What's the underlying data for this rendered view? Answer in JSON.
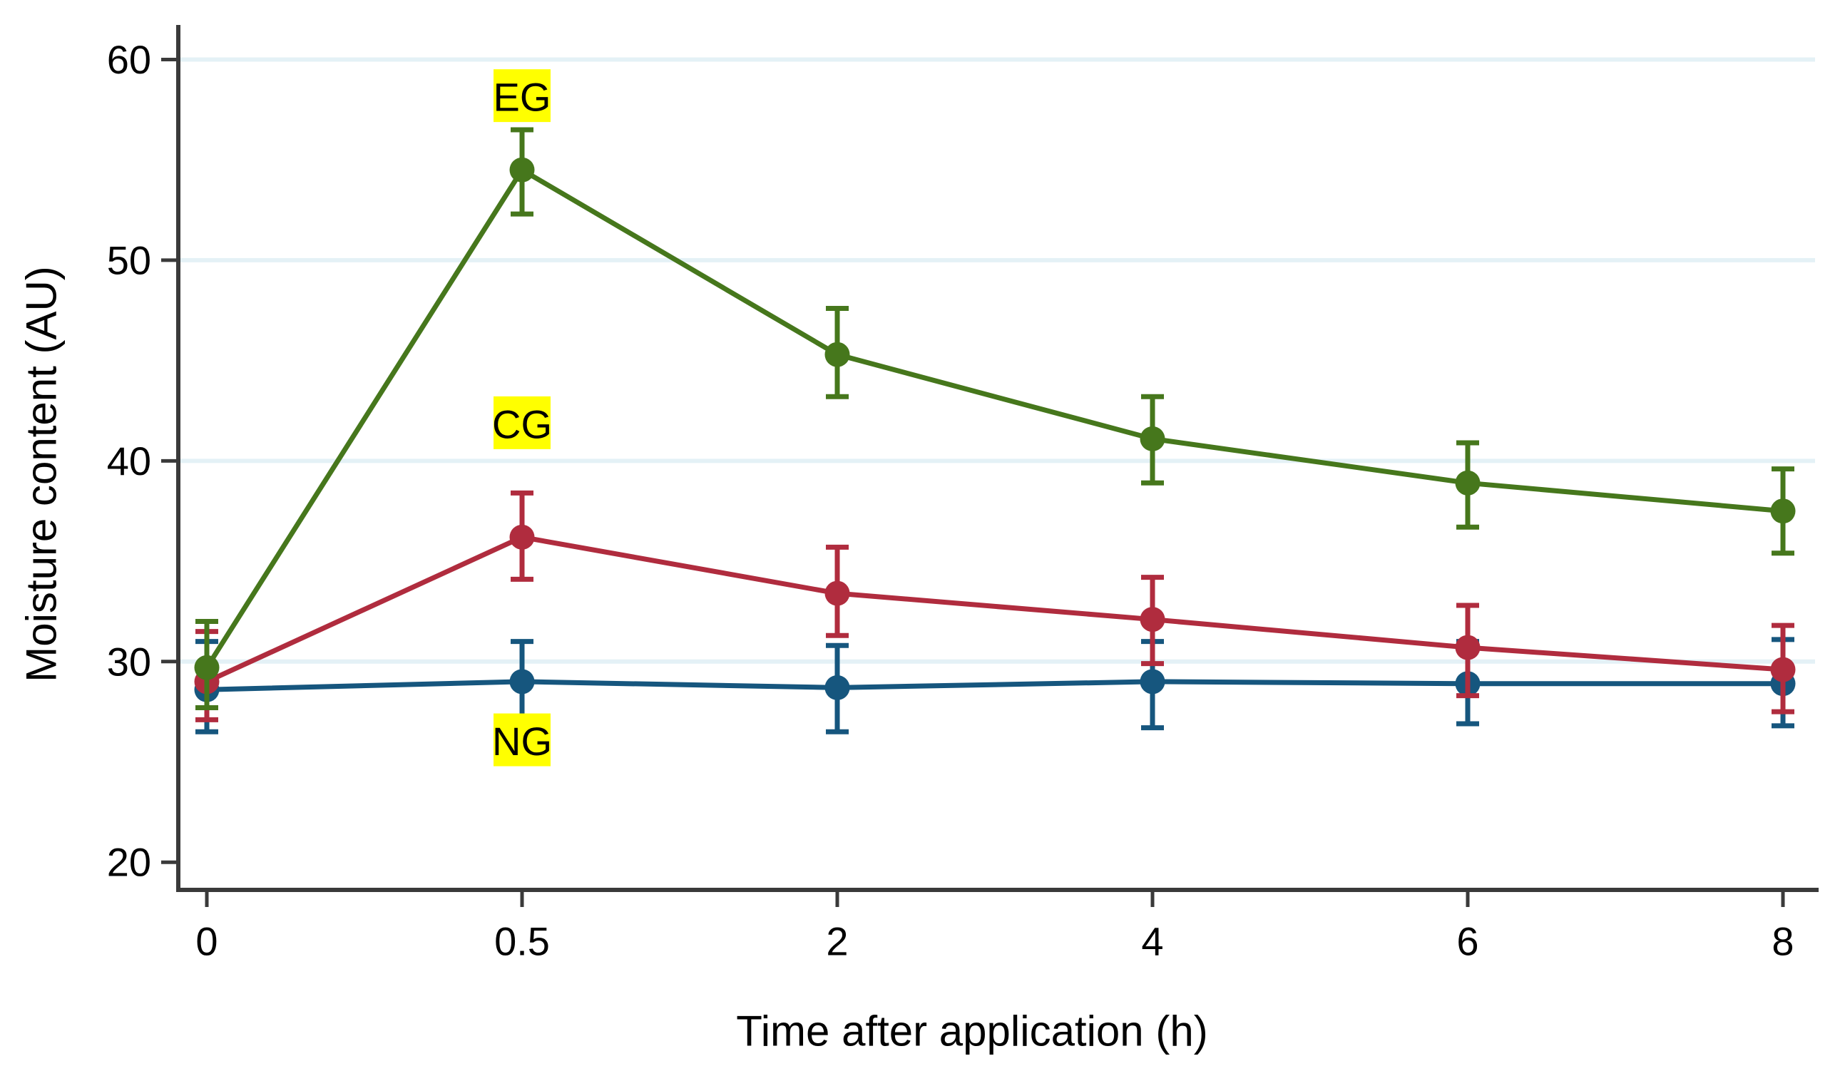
{
  "chart_data": {
    "type": "line",
    "title": "",
    "xlabel": "Time after application (h)",
    "ylabel": "Moisture content (AU)",
    "categories": [
      "0",
      "0.5",
      "2",
      "4",
      "6",
      "8"
    ],
    "y_ticks": [
      20,
      30,
      40,
      50,
      60
    ],
    "ylim": [
      18.8,
      61.9
    ],
    "grid_values": [
      30,
      40,
      50,
      60
    ],
    "grid": true,
    "legend_position": "inline-data-labels",
    "error_bars": true,
    "series": [
      {
        "name": "EG",
        "color": "#46771c",
        "values": [
          29.7,
          54.5,
          45.3,
          41.1,
          38.9,
          37.5
        ],
        "err_up": [
          2.3,
          2.0,
          2.3,
          2.1,
          2.0,
          2.1
        ],
        "err_down": [
          2.0,
          2.2,
          2.1,
          2.2,
          2.2,
          2.1
        ]
      },
      {
        "name": "CG",
        "color": "#b02c3e",
        "values": [
          29.0,
          36.2,
          33.4,
          32.1,
          30.7,
          29.6
        ],
        "err_up": [
          2.5,
          2.2,
          2.3,
          2.1,
          2.1,
          2.2
        ],
        "err_down": [
          1.9,
          2.1,
          2.1,
          2.2,
          2.4,
          2.1
        ]
      },
      {
        "name": "NG",
        "color": "#16567e",
        "values": [
          28.6,
          29.0,
          28.7,
          29.0,
          28.9,
          28.9
        ],
        "err_up": [
          2.4,
          2.0,
          2.1,
          2.0,
          2.1,
          2.2
        ],
        "err_down": [
          2.1,
          2.0,
          2.2,
          2.3,
          2.0,
          2.1
        ]
      }
    ],
    "annotations": [
      {
        "text": "EG",
        "x": "0.5",
        "value": 58.2,
        "bg": "#ffff00"
      },
      {
        "text": "CG",
        "x": "0.5",
        "value": 41.9,
        "bg": "#ffff00"
      },
      {
        "text": "NG",
        "x": "0.5",
        "value": 26.1,
        "bg": "#ffff00"
      }
    ],
    "colors": {
      "grid": "#e4f1f6",
      "axis": "#3a3a3a",
      "text": "#000000",
      "label_bg": "#ffff00"
    }
  }
}
